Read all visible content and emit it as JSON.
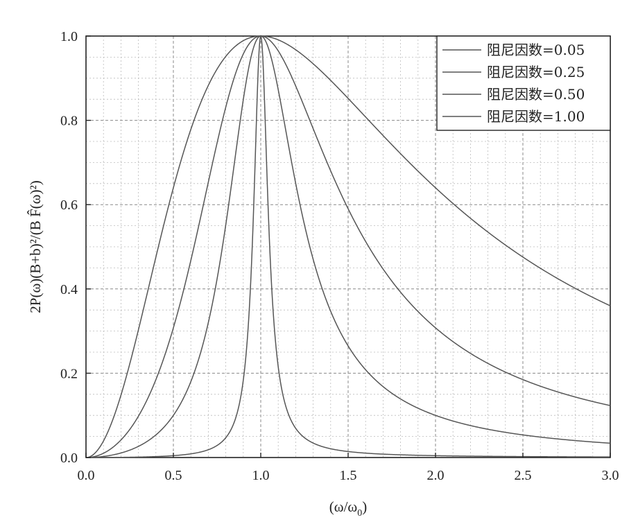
{
  "chart_data": {
    "type": "line",
    "xlabel": "(ω/ω",
    "xlabel_sub": "0",
    "xlabel_close": ")",
    "ylabel": "2P(ω)(B+b)²/(B F̂(ω)²)",
    "xlim": [
      0.0,
      3.0
    ],
    "ylim": [
      0.0,
      1.0
    ],
    "x_ticks": [
      "0.0",
      "0.5",
      "1.0",
      "1.5",
      "2.0",
      "2.5",
      "3.0"
    ],
    "y_ticks": [
      "0.0",
      "0.2",
      "0.4",
      "0.6",
      "0.8",
      "1.0"
    ],
    "grid": true,
    "legend_position": "top-right",
    "series": [
      {
        "name": "阻尼因数=0.05",
        "damping": 0.05
      },
      {
        "name": "阻尼因数=0.25",
        "damping": 0.25
      },
      {
        "name": "阻尼因数=0.50",
        "damping": 0.5
      },
      {
        "name": "阻尼因数=1.00",
        "damping": 1.0
      }
    ],
    "line_color": "#555555"
  }
}
